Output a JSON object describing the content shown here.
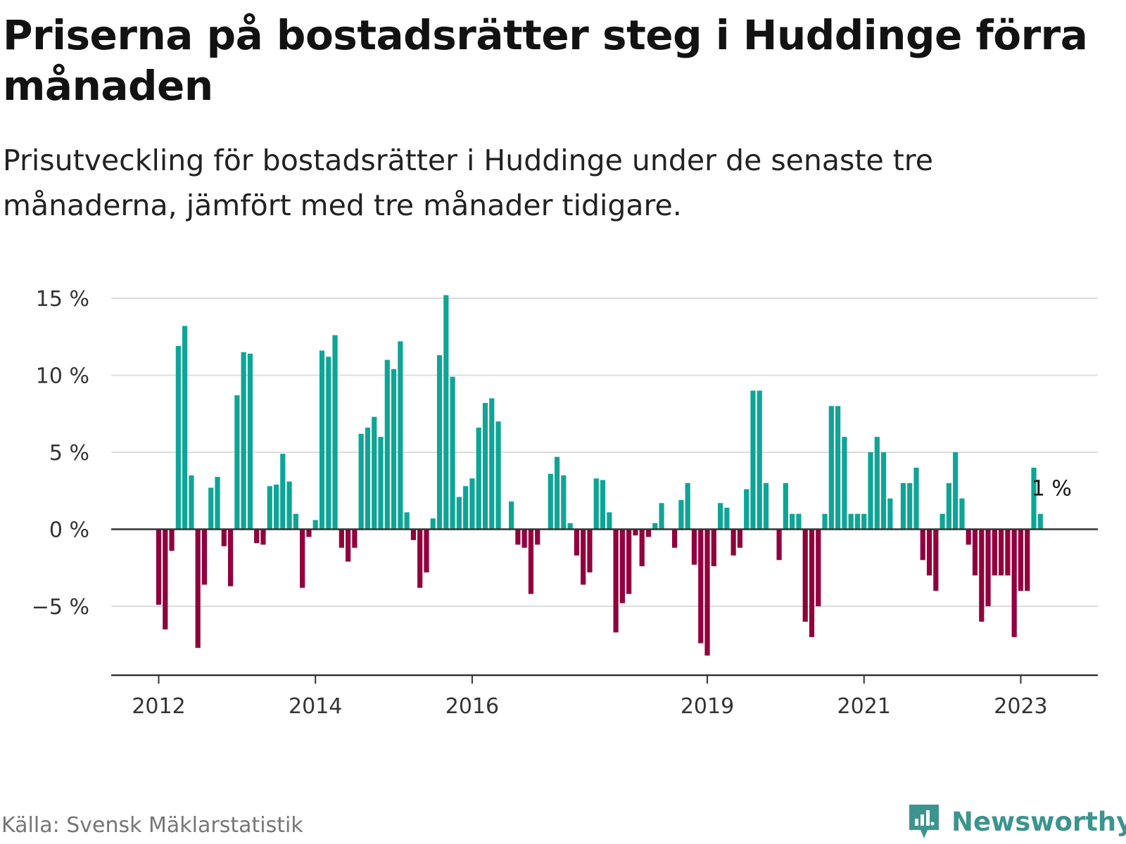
{
  "title": "Priserna på bostadsrätter steg i Huddinge förra månaden",
  "subtitle": "Prisutveckling för bostadsrätter i Huddinge under de senaste tre månaderna, jämfört med tre månader tidigare.",
  "source": "Källa: Svensk Mäklarstatistik",
  "brand": "Newsworthy",
  "colors": {
    "positive": "#0ea596",
    "negative": "#91003c",
    "brand": "#3d948e",
    "grid": "#dddddd"
  },
  "chart_data": {
    "type": "bar",
    "title": "Priserna på bostadsrätter steg i Huddinge förra månaden",
    "ylabel": "",
    "xlabel": "",
    "ylim": [
      -9.4,
      15.5
    ],
    "y_ticks": [
      {
        "value": 15,
        "label": "15 %"
      },
      {
        "value": 10,
        "label": "10 %"
      },
      {
        "value": 5,
        "label": "5 %"
      },
      {
        "value": 0,
        "label": "0 %"
      },
      {
        "value": -5,
        "label": "−5 %"
      }
    ],
    "x_ticks": [
      {
        "index": 0,
        "label": "2012"
      },
      {
        "index": 24,
        "label": "2014"
      },
      {
        "index": 48,
        "label": "2016"
      },
      {
        "index": 84,
        "label": "2019"
      },
      {
        "index": 108,
        "label": "2021"
      },
      {
        "index": 132,
        "label": "2023"
      }
    ],
    "last_value_label": "1 %",
    "series": [
      {
        "name": "Prisutveckling",
        "values": [
          -4.9,
          -6.5,
          -1.4,
          11.9,
          13.2,
          3.5,
          -7.7,
          -3.6,
          2.7,
          3.4,
          -1.1,
          -3.7,
          8.7,
          11.5,
          11.4,
          -0.9,
          -1.0,
          2.8,
          2.9,
          4.9,
          3.1,
          1.0,
          -3.8,
          -0.5,
          0.6,
          11.6,
          11.2,
          12.6,
          -1.2,
          -2.1,
          -1.2,
          6.2,
          6.6,
          7.3,
          6.0,
          11.0,
          10.4,
          12.2,
          1.1,
          -0.7,
          -3.8,
          -2.8,
          0.7,
          11.3,
          15.2,
          9.9,
          2.1,
          2.8,
          3.3,
          6.6,
          8.2,
          8.5,
          7.0,
          0.0,
          1.8,
          -1.0,
          -1.2,
          -4.2,
          -1.0,
          0.0,
          3.6,
          4.7,
          3.5,
          0.4,
          -1.7,
          -3.6,
          -2.8,
          3.3,
          3.2,
          1.1,
          -6.7,
          -4.8,
          -4.2,
          -0.4,
          -2.4,
          -0.5,
          0.4,
          1.7,
          0.0,
          -1.2,
          1.9,
          3.0,
          -2.3,
          -7.4,
          -8.2,
          -2.4,
          1.7,
          1.4,
          -1.7,
          -1.2,
          2.6,
          9.0,
          9.0,
          3.0,
          0.0,
          -2.0,
          3.0,
          1.0,
          1.0,
          -6.0,
          -7.0,
          -5.0,
          1.0,
          8.0,
          8.0,
          6.0,
          1.0,
          1.0,
          1.0,
          5.0,
          6.0,
          5.0,
          2.0,
          0.0,
          3.0,
          3.0,
          4.0,
          -2.0,
          -3.0,
          -4.0,
          1.0,
          3.0,
          5.0,
          2.0,
          -1.0,
          -3.0,
          -6.0,
          -5.0,
          -3.0,
          -3.0,
          -3.0,
          -7.0,
          -4.0,
          -4.0,
          4.0,
          1.0
        ]
      }
    ]
  }
}
